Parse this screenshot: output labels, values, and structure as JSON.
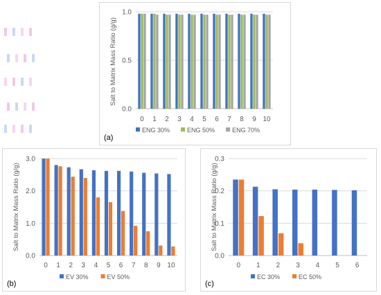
{
  "colors": {
    "s1": "#4472c4",
    "s2": "#ed7d31",
    "s3": "#a5a5a5",
    "eng50": "#9bbb59",
    "grid": "#d9d9d9",
    "axis": "#bfbfbf",
    "text": "#595959"
  },
  "chart_data": [
    {
      "type": "bar",
      "panel_label": "(a)",
      "ylabel": "Salt to Matrix Mass Ratio (g/g)",
      "xlabel": "",
      "categories": [
        "0",
        "1",
        "2",
        "3",
        "4",
        "5",
        "6",
        "7",
        "8",
        "9",
        "10"
      ],
      "ylim": [
        0,
        1.0
      ],
      "yticks": [
        "0.0",
        "0.5",
        "1.0"
      ],
      "grid": true,
      "legend_position": "bottom",
      "series": [
        {
          "name": "ENG 30%",
          "color": "#4472c4",
          "values": [
            0.98,
            0.98,
            0.98,
            0.98,
            0.98,
            0.98,
            0.98,
            0.98,
            0.98,
            0.98,
            0.98
          ]
        },
        {
          "name": "ENG 50%",
          "color": "#9bbb59",
          "values": [
            0.98,
            0.98,
            0.97,
            0.97,
            0.97,
            0.97,
            0.97,
            0.97,
            0.97,
            0.97,
            0.97
          ]
        },
        {
          "name": "ENG 70%",
          "color": "#a5a5a5",
          "values": [
            0.98,
            0.97,
            0.97,
            0.97,
            0.97,
            0.97,
            0.97,
            0.97,
            0.97,
            0.97,
            0.97
          ]
        }
      ]
    },
    {
      "type": "bar",
      "panel_label": "(b)",
      "ylabel": "Salt to Matrix Mass Ratio (g/g)",
      "xlabel": "",
      "categories": [
        "0",
        "1",
        "2",
        "3",
        "4",
        "5",
        "6",
        "7",
        "8",
        "9",
        "10"
      ],
      "ylim": [
        0,
        3.0
      ],
      "yticks": [
        "0.0",
        "1.0",
        "2.0",
        "3.0"
      ],
      "grid": true,
      "legend_position": "bottom",
      "series": [
        {
          "name": "EV 30%",
          "color": "#4472c4",
          "values": [
            3.0,
            2.8,
            2.73,
            2.67,
            2.64,
            2.62,
            2.62,
            2.6,
            2.56,
            2.54,
            2.52
          ]
        },
        {
          "name": "EV 50%",
          "color": "#ed7d31",
          "values": [
            3.0,
            2.76,
            2.44,
            2.4,
            1.8,
            1.65,
            1.38,
            0.92,
            0.75,
            0.31,
            0.28
          ]
        }
      ]
    },
    {
      "type": "bar",
      "panel_label": "(c)",
      "ylabel": "Salt to Matrix Mass Ratio (g/g)",
      "xlabel": "",
      "categories": [
        "0",
        "1",
        "2",
        "3",
        "4",
        "5",
        "6"
      ],
      "ylim": [
        0,
        0.3
      ],
      "yticks": [
        "0.0",
        "0.1",
        "0.2",
        "0.3"
      ],
      "grid": true,
      "legend_position": "bottom",
      "series": [
        {
          "name": "EC 30%",
          "color": "#4472c4",
          "values": [
            0.235,
            0.213,
            0.205,
            0.204,
            0.204,
            0.203,
            0.202
          ]
        },
        {
          "name": "EC 50%",
          "color": "#ed7d31",
          "values": [
            0.235,
            0.122,
            0.069,
            0.038,
            null,
            null,
            null
          ]
        }
      ]
    }
  ],
  "artifacts": {
    "left_margin_stripe_colors": [
      "#f4c7e7",
      "#c9d8f5",
      "#f6d5ef"
    ]
  }
}
